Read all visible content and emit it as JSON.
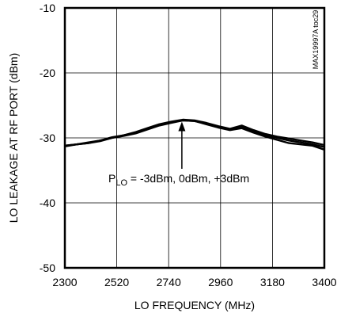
{
  "chart_data": {
    "type": "line",
    "title": "",
    "xlabel": "LO FREQUENCY (MHz)",
    "ylabel": "LO LEAKAGE AT RF PORT (dBm)",
    "xlim": [
      2300,
      3400
    ],
    "ylim": [
      -50,
      -10
    ],
    "xticks": [
      2300,
      2520,
      2740,
      2960,
      3180,
      3400
    ],
    "yticks": [
      -50,
      -40,
      -30,
      -20,
      -10
    ],
    "grid": true,
    "legend": "none",
    "annotation": {
      "prefix": "P",
      "subscript": "LO",
      "suffix": " = -3dBm, 0dBm, +3dBm",
      "arrow_to": {
        "x": 2796,
        "y": -27.5
      }
    },
    "side_note": "MAX19997A toc29",
    "series": [
      {
        "color": "#000000",
        "x": [
          2300,
          2350,
          2400,
          2450,
          2500,
          2550,
          2600,
          2650,
          2700,
          2750,
          2800,
          2850,
          2900,
          2950,
          3000,
          3050,
          3100,
          3150,
          3200,
          3250,
          3300,
          3350,
          3400
        ],
        "y": [
          -31.2,
          -31.0,
          -30.8,
          -30.5,
          -30.0,
          -29.7,
          -29.3,
          -28.7,
          -28.1,
          -27.7,
          -27.3,
          -27.4,
          -27.9,
          -28.4,
          -28.8,
          -28.5,
          -29.2,
          -29.8,
          -30.3,
          -30.8,
          -31.0,
          -31.2,
          -31.8
        ]
      },
      {
        "color": "#000000",
        "x": [
          2300,
          2350,
          2400,
          2450,
          2500,
          2550,
          2600,
          2650,
          2700,
          2750,
          2800,
          2850,
          2900,
          2950,
          3000,
          3050,
          3100,
          3150,
          3200,
          3250,
          3300,
          3350,
          3400
        ],
        "y": [
          -31.3,
          -31.0,
          -30.8,
          -30.4,
          -30.0,
          -29.6,
          -29.2,
          -28.6,
          -28.0,
          -27.6,
          -27.3,
          -27.4,
          -27.8,
          -28.3,
          -28.7,
          -28.3,
          -29.0,
          -29.6,
          -30.0,
          -30.4,
          -30.7,
          -31.0,
          -31.4
        ]
      },
      {
        "color": "#000000",
        "x": [
          2300,
          2350,
          2400,
          2450,
          2500,
          2550,
          2600,
          2650,
          2700,
          2750,
          2800,
          2850,
          2900,
          2950,
          3000,
          3050,
          3100,
          3150,
          3200,
          3250,
          3300,
          3350,
          3400
        ],
        "y": [
          -31.2,
          -31.0,
          -30.7,
          -30.4,
          -29.9,
          -29.6,
          -29.1,
          -28.5,
          -27.9,
          -27.5,
          -27.2,
          -27.3,
          -27.7,
          -28.2,
          -28.6,
          -28.1,
          -28.8,
          -29.4,
          -29.8,
          -30.1,
          -30.4,
          -30.7,
          -31.1
        ]
      }
    ]
  }
}
